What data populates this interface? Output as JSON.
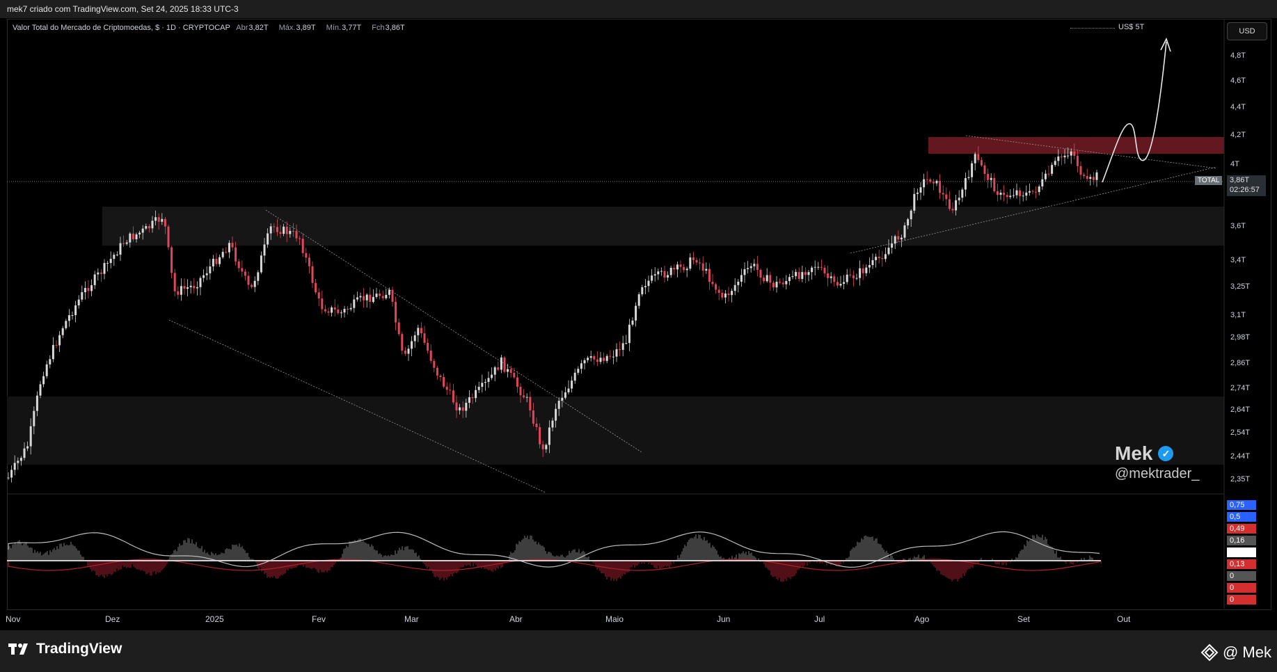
{
  "header": {
    "caption": "mek7 criado com TradingView.com, Set 24, 2025 18:33 UTC-3"
  },
  "legend": {
    "title": "Valor Total do Mercado de Criptomoedas, $ · 1D · CRYPTOCAP",
    "open_label": "Abr",
    "open": "3,82T",
    "high_label": "Máx.",
    "high": "3,89T",
    "low_label": "Mín.",
    "low": "3,77T",
    "close_label": "Fch",
    "close": "3,86T"
  },
  "currency_button": "USD",
  "level_label": "US$ 5T",
  "price_axis": [
    "4,8T",
    "4,6T",
    "4,4T",
    "4,2T",
    "4T",
    "3,6T",
    "3,4T",
    "3,25T",
    "3,1T",
    "2,98T",
    "2,86T",
    "2,74T",
    "2,64T",
    "2,54T",
    "2,44T",
    "2,35T"
  ],
  "current_price": {
    "symbol": "TOTAL",
    "value": "3,86T",
    "countdown": "02:26:57"
  },
  "oscillator_axis": [
    {
      "text": "0,75",
      "color": "#2962ff"
    },
    {
      "text": "0,5",
      "color": "#2962ff"
    },
    {
      "text": "0,49",
      "color": "#d32f2f"
    },
    {
      "text": "0,16",
      "color": "#555555"
    },
    {
      "text": "0,16",
      "color": "#ffffff"
    },
    {
      "text": "0,13",
      "color": "#d32f2f"
    },
    {
      "text": "0",
      "color": "#555555"
    },
    {
      "text": "0",
      "color": "#d32f2f"
    },
    {
      "text": "0",
      "color": "#d32f2f"
    }
  ],
  "time_axis": [
    "Nov",
    "Dez",
    "2025",
    "Fev",
    "Mar",
    "Abr",
    "Maio",
    "Jun",
    "Jul",
    "Ago",
    "Set",
    "Out"
  ],
  "watermark": {
    "name": "Mek",
    "handle": "@mektrader_"
  },
  "footer": {
    "brand": "TradingView",
    "author": "@ Mek"
  },
  "colors": {
    "up": "#d9d9d9",
    "down": "#e0485a",
    "resistance_zone": "#7a1c24",
    "support_zone": "#161616"
  }
}
